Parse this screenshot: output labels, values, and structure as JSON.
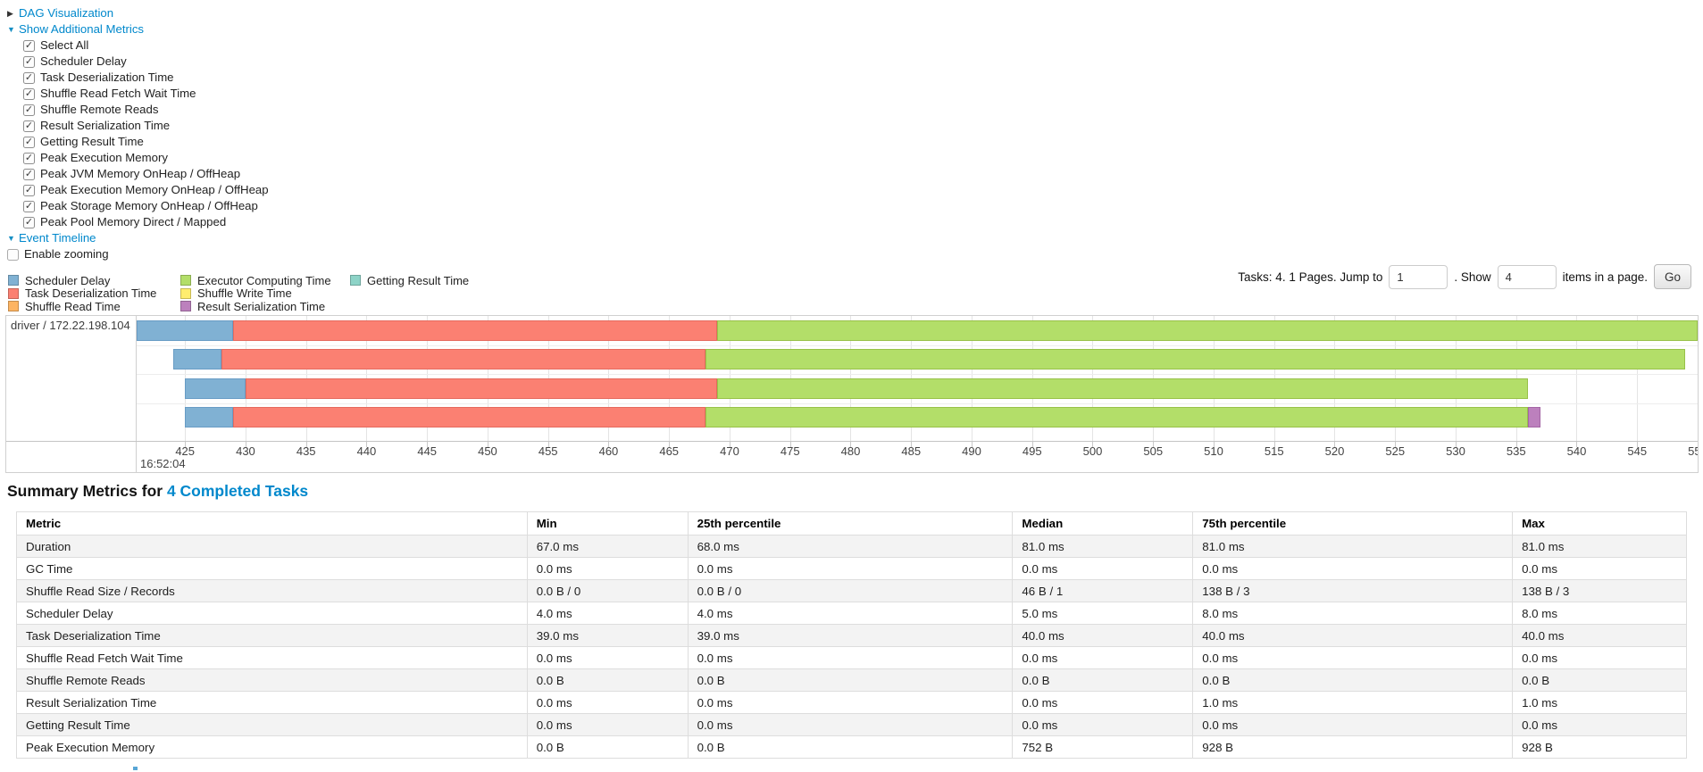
{
  "colors": {
    "link_blue": "#0088cc",
    "open_arrow": "#168fc4",
    "closed_arrow": "#333333",
    "table_stripe": "#f3f3f3",
    "table_border": "#dddddd"
  },
  "controls": {
    "dag": {
      "label": "DAG Visualization",
      "arrow": "▶",
      "expanded": false
    },
    "metrics": {
      "label": "Show Additional Metrics",
      "arrow": "▼",
      "expanded": true
    },
    "metric_checkboxes": [
      {
        "label": "Select All",
        "checked": true
      },
      {
        "label": "Scheduler Delay",
        "checked": true
      },
      {
        "label": "Task Deserialization Time",
        "checked": true
      },
      {
        "label": "Shuffle Read Fetch Wait Time",
        "checked": true
      },
      {
        "label": "Shuffle Remote Reads",
        "checked": true
      },
      {
        "label": "Result Serialization Time",
        "checked": true
      },
      {
        "label": "Getting Result Time",
        "checked": true
      },
      {
        "label": "Peak Execution Memory",
        "checked": true
      },
      {
        "label": "Peak JVM Memory OnHeap / OffHeap",
        "checked": true
      },
      {
        "label": "Peak Execution Memory OnHeap / OffHeap",
        "checked": true
      },
      {
        "label": "Peak Storage Memory OnHeap / OffHeap",
        "checked": true
      },
      {
        "label": "Peak Pool Memory Direct / Mapped",
        "checked": true
      }
    ],
    "event_timeline": {
      "label": "Event Timeline",
      "arrow": "▼",
      "expanded": true
    },
    "enable_zooming": {
      "label": "Enable zooming",
      "checked": false
    }
  },
  "pagination": {
    "tasks_text": "Tasks: 4. 1 Pages. Jump to",
    "jump_value": "1",
    "show_text": ". Show",
    "show_value": "4",
    "items_text": "items in a page.",
    "go_label": "Go"
  },
  "chart_data": {
    "type": "timeline",
    "group_label": "driver / 172.22.198.104",
    "x_axis": {
      "domain": [
        421,
        550
      ],
      "tick_start": 425,
      "tick_interval": 5,
      "major_label": "16:52:04",
      "unit": "milliseconds after 16:52:04"
    },
    "legend": [
      {
        "type": "scheduler-delay",
        "label": "Scheduler Delay",
        "color": "#80B1D3",
        "border": "#689CC5"
      },
      {
        "type": "task-deserialization",
        "label": "Task Deserialization Time",
        "color": "#FB8072",
        "border": "#E56A5E"
      },
      {
        "type": "shuffle-read",
        "label": "Shuffle Read Time",
        "color": "#FDB462",
        "border": "#E79C48"
      },
      {
        "type": "executor-computing",
        "label": "Executor Computing Time",
        "color": "#B3DE69",
        "border": "#98C149"
      },
      {
        "type": "shuffle-write",
        "label": "Shuffle Write Time",
        "color": "#FFED6F",
        "border": "#E3D055"
      },
      {
        "type": "result-serialization",
        "label": "Result Serialization Time",
        "color": "#BC80BD",
        "border": "#A466A5"
      },
      {
        "type": "getting-result",
        "label": "Getting Result Time",
        "color": "#8DD3C7",
        "border": "#6FB9AC"
      }
    ],
    "tasks": [
      {
        "start": 421,
        "segments": [
          {
            "type": "scheduler-delay",
            "duration": 8
          },
          {
            "type": "task-deserialization",
            "duration": 40
          },
          {
            "type": "executor-computing",
            "duration": 81
          }
        ]
      },
      {
        "start": 424,
        "segments": [
          {
            "type": "scheduler-delay",
            "duration": 4
          },
          {
            "type": "task-deserialization",
            "duration": 40
          },
          {
            "type": "executor-computing",
            "duration": 81
          }
        ]
      },
      {
        "start": 425,
        "segments": [
          {
            "type": "scheduler-delay",
            "duration": 5
          },
          {
            "type": "task-deserialization",
            "duration": 39
          },
          {
            "type": "executor-computing",
            "duration": 67
          }
        ]
      },
      {
        "start": 425,
        "segments": [
          {
            "type": "scheduler-delay",
            "duration": 4
          },
          {
            "type": "task-deserialization",
            "duration": 39
          },
          {
            "type": "executor-computing",
            "duration": 68
          },
          {
            "type": "result-serialization",
            "duration": 1
          }
        ]
      }
    ]
  },
  "summary": {
    "title_prefix": "Summary Metrics for ",
    "title_link": "4 Completed Tasks",
    "columns": [
      "Metric",
      "Min",
      "25th percentile",
      "Median",
      "75th percentile",
      "Max"
    ],
    "rows": [
      [
        "Duration",
        "67.0 ms",
        "68.0 ms",
        "81.0 ms",
        "81.0 ms",
        "81.0 ms"
      ],
      [
        "GC Time",
        "0.0 ms",
        "0.0 ms",
        "0.0 ms",
        "0.0 ms",
        "0.0 ms"
      ],
      [
        "Shuffle Read Size / Records",
        "0.0 B / 0",
        "0.0 B / 0",
        "46 B / 1",
        "138 B / 3",
        "138 B / 3"
      ],
      [
        "Scheduler Delay",
        "4.0 ms",
        "4.0 ms",
        "5.0 ms",
        "8.0 ms",
        "8.0 ms"
      ],
      [
        "Task Deserialization Time",
        "39.0 ms",
        "39.0 ms",
        "40.0 ms",
        "40.0 ms",
        "40.0 ms"
      ],
      [
        "Shuffle Read Fetch Wait Time",
        "0.0 ms",
        "0.0 ms",
        "0.0 ms",
        "0.0 ms",
        "0.0 ms"
      ],
      [
        "Shuffle Remote Reads",
        "0.0 B",
        "0.0 B",
        "0.0 B",
        "0.0 B",
        "0.0 B"
      ],
      [
        "Result Serialization Time",
        "0.0 ms",
        "0.0 ms",
        "0.0 ms",
        "1.0 ms",
        "1.0 ms"
      ],
      [
        "Getting Result Time",
        "0.0 ms",
        "0.0 ms",
        "0.0 ms",
        "0.0 ms",
        "0.0 ms"
      ],
      [
        "Peak Execution Memory",
        "0.0 B",
        "0.0 B",
        "752 B",
        "928 B",
        "928 B"
      ]
    ]
  }
}
